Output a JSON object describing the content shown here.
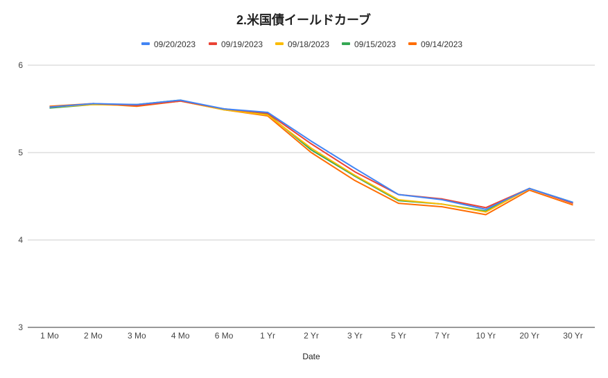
{
  "chart_data": {
    "type": "line",
    "title": "2.米国債イールドカーブ",
    "xlabel": "Date",
    "ylabel": "",
    "categories": [
      "1 Mo",
      "2 Mo",
      "3 Mo",
      "4 Mo",
      "6 Mo",
      "1 Yr",
      "2 Yr",
      "3 Yr",
      "5 Yr",
      "7 Yr",
      "10 Yr",
      "20 Yr",
      "30 Yr"
    ],
    "ylim": [
      3,
      6
    ],
    "yticks": [
      "3",
      "4",
      "5",
      "6"
    ],
    "grid": true,
    "legend_position": "top",
    "series": [
      {
        "name": "09/20/2023",
        "color": "#4285F4",
        "values": [
          5.52,
          5.56,
          5.55,
          5.6,
          5.5,
          5.46,
          5.13,
          4.82,
          4.52,
          4.46,
          4.35,
          4.59,
          4.43
        ]
      },
      {
        "name": "09/19/2023",
        "color": "#EA4335",
        "values": [
          5.52,
          5.56,
          5.54,
          5.59,
          5.5,
          5.45,
          5.1,
          4.78,
          4.52,
          4.47,
          4.37,
          4.59,
          4.42
        ]
      },
      {
        "name": "09/18/2023",
        "color": "#FBBC04",
        "values": [
          5.52,
          5.55,
          5.54,
          5.59,
          5.49,
          5.43,
          5.05,
          4.74,
          4.46,
          4.41,
          4.32,
          4.59,
          4.42
        ]
      },
      {
        "name": "09/15/2023",
        "color": "#34A853",
        "values": [
          5.51,
          5.55,
          5.55,
          5.6,
          5.49,
          5.44,
          5.03,
          4.73,
          4.45,
          4.41,
          4.33,
          4.59,
          4.43
        ]
      },
      {
        "name": "09/14/2023",
        "color": "#FF6D01",
        "values": [
          5.53,
          5.56,
          5.53,
          5.59,
          5.49,
          5.42,
          5.0,
          4.68,
          4.42,
          4.38,
          4.29,
          4.57,
          4.4
        ]
      }
    ]
  }
}
